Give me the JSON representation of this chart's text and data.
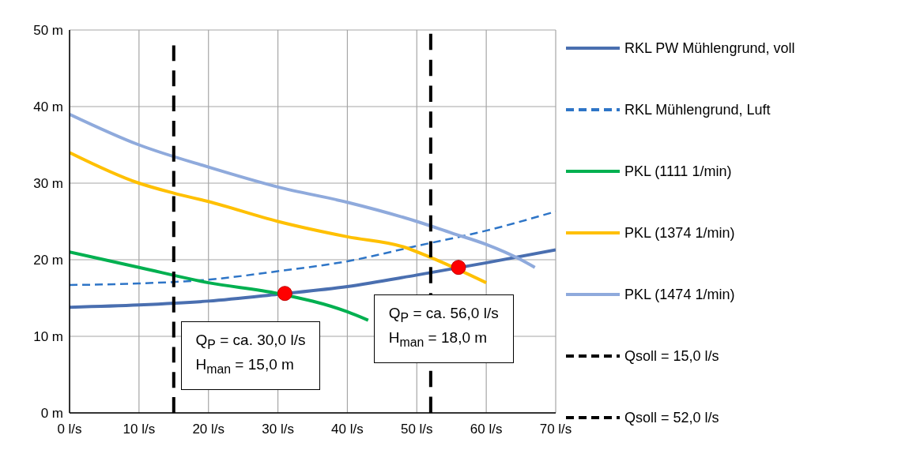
{
  "chart_data": {
    "type": "line",
    "xlim": [
      0,
      70
    ],
    "xticks": [
      {
        "value": 0,
        "label": "0 l/s"
      },
      {
        "value": 10,
        "label": "10 l/s"
      },
      {
        "value": 20,
        "label": "20 l/s"
      },
      {
        "value": 30,
        "label": "30 l/s"
      },
      {
        "value": 40,
        "label": "40 l/s"
      },
      {
        "value": 50,
        "label": "50 l/s"
      },
      {
        "value": 60,
        "label": "60 l/s"
      },
      {
        "value": 70,
        "label": "70 l/s"
      }
    ],
    "ylim": [
      0,
      50
    ],
    "yticks": [
      {
        "value": 0,
        "label": "0 m"
      },
      {
        "value": 10,
        "label": "10 m"
      },
      {
        "value": 20,
        "label": "20 m"
      },
      {
        "value": 30,
        "label": "30 m"
      },
      {
        "value": 40,
        "label": "40 m"
      },
      {
        "value": 50,
        "label": "50 m"
      }
    ],
    "grid": true,
    "legend": "right",
    "marker": "none",
    "series": [
      {
        "name": "RKL PW Mühlengrund, voll",
        "color": "#4a6fb0",
        "line_style": "solid",
        "x": [
          0,
          10,
          20,
          30,
          40,
          50,
          60,
          70
        ],
        "values": [
          13.8,
          14.1,
          14.6,
          15.5,
          16.5,
          18,
          19.6,
          21.3
        ]
      },
      {
        "name": "RKL Mühlengrund, Luft",
        "color": "#2e75c7",
        "line_style": "dashed",
        "x": [
          0,
          10,
          20,
          30,
          40,
          50,
          60,
          70
        ],
        "values": [
          16.7,
          16.9,
          17.4,
          18.5,
          19.8,
          21.8,
          23.8,
          26.3
        ]
      },
      {
        "name": "PKL (1111 1/min)",
        "color": "#00b050",
        "line_style": "solid",
        "x": [
          0,
          10,
          20,
          30,
          40,
          43
        ],
        "values": [
          21,
          19,
          17,
          15.6,
          13.2,
          12.1
        ]
      },
      {
        "name": "PKL (1374 1/min)",
        "color": "#ffc000",
        "line_style": "solid",
        "x": [
          0,
          10,
          15,
          20,
          30,
          40,
          48,
          52,
          60
        ],
        "values": [
          34,
          30,
          28.7,
          27.6,
          25,
          23,
          21.7,
          20.3,
          17
        ]
      },
      {
        "name": "PKL (1474 1/min)",
        "color": "#8faadc",
        "line_style": "solid",
        "x": [
          0,
          10,
          20,
          30,
          40,
          50,
          55,
          60,
          65,
          67
        ],
        "values": [
          39,
          35,
          32.1,
          29.5,
          27.5,
          25,
          23.5,
          22,
          20,
          19
        ]
      },
      {
        "name": "Qsoll = 15,0 l/s",
        "color": "#000000",
        "line_style": "dashed",
        "x": [
          15,
          15
        ],
        "values": [
          0,
          48
        ]
      },
      {
        "name": "Qsoll = 52,0 l/s",
        "color": "#000000",
        "line_style": "dashed",
        "x": [
          52,
          52
        ],
        "values": [
          0,
          49.5
        ]
      },
      {
        "type": "scatter",
        "color": "#ff0000",
        "marker": "circle",
        "x": [
          31,
          56
        ],
        "values": [
          15.6,
          19
        ]
      }
    ],
    "annotations": [
      {
        "text": "Q$_{P}$ = ca. 30,0 l/s\nH$_{man}$ = 15,0 m",
        "x": 31,
        "y": 15.6
      },
      {
        "text": "Q$_{P}$ = ca. 56,0 l/s\nH$_{man}$ = 18,0 m",
        "x": 56,
        "y": 19
      }
    ]
  }
}
